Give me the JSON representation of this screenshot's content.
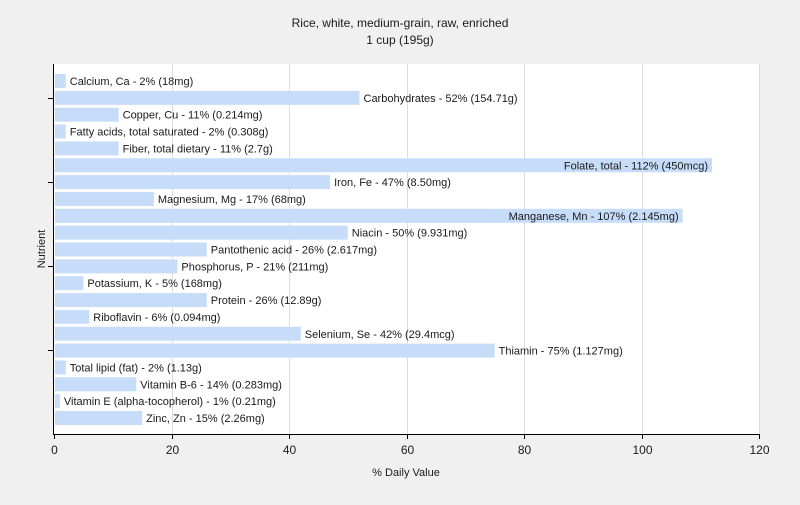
{
  "chart_data": {
    "type": "bar",
    "orientation": "horizontal",
    "title": "Rice, white, medium-grain, raw, enriched",
    "subtitle": "1 cup (195g)",
    "xlabel": "% Daily Value",
    "ylabel": "Nutrient",
    "xlim": [
      0,
      120
    ],
    "xticks": [
      0,
      20,
      40,
      60,
      80,
      100,
      120
    ],
    "grid": "vertical",
    "bar_color": "#c6dcf8",
    "categories": [
      "Calcium, Ca",
      "Carbohydrates",
      "Copper, Cu",
      "Fatty acids, total saturated",
      "Fiber, total dietary",
      "Folate, total",
      "Iron, Fe",
      "Magnesium, Mg",
      "Manganese, Mn",
      "Niacin",
      "Pantothenic acid",
      "Phosphorus, P",
      "Potassium, K",
      "Protein",
      "Riboflavin",
      "Selenium, Se",
      "Thiamin",
      "Total lipid (fat)",
      "Vitamin B-6",
      "Vitamin E (alpha-tocopherol)",
      "Zinc, Zn"
    ],
    "values": [
      2,
      52,
      11,
      2,
      11,
      112,
      47,
      17,
      107,
      50,
      26,
      21,
      5,
      26,
      6,
      42,
      75,
      2,
      14,
      1,
      15
    ],
    "labels": [
      "Calcium, Ca - 2% (18mg)",
      "Carbohydrates - 52% (154.71g)",
      "Copper, Cu - 11% (0.214mg)",
      "Fatty acids, total saturated - 2% (0.308g)",
      "Fiber, total dietary - 11% (2.7g)",
      "Folate, total - 112% (450mcg)",
      "Iron, Fe - 47% (8.50mg)",
      "Magnesium, Mg - 17% (68mg)",
      "Manganese, Mn - 107% (2.145mg)",
      "Niacin - 50% (9.931mg)",
      "Pantothenic acid - 26% (2.617mg)",
      "Phosphorus, P - 21% (211mg)",
      "Potassium, K - 5% (168mg)",
      "Protein - 26% (12.89g)",
      "Riboflavin - 6% (0.094mg)",
      "Selenium, Se - 42% (29.4mcg)",
      "Thiamin - 75% (1.127mg)",
      "Total lipid (fat) - 2% (1.13g)",
      "Vitamin B-6 - 14% (0.283mg)",
      "Vitamin E (alpha-tocopherol) - 1% (0.21mg)",
      "Zinc, Zn - 15% (2.26mg)"
    ]
  }
}
